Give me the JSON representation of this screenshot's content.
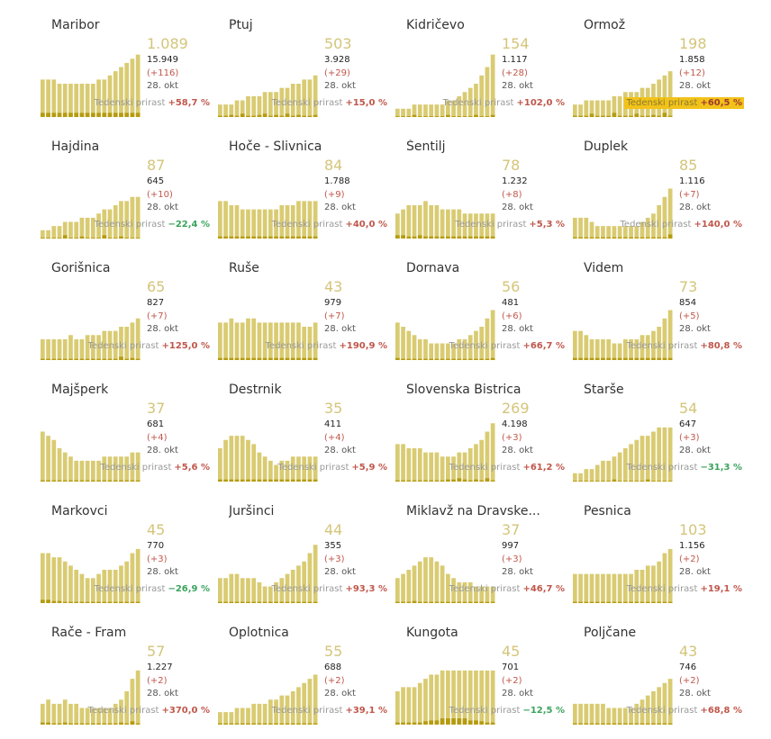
{
  "growth_label": "Tedenski prirast",
  "colors": {
    "bar_active": "#d9cb72",
    "bar_new": "#b59b10",
    "active_text": "#d4c57a",
    "positive": "#c0574b",
    "negative": "#3aa35c",
    "highlight": "#f2c21a"
  },
  "chart_data": [
    {
      "type": "bar",
      "title": "Maribor",
      "active": "1.089",
      "total": "15.949",
      "new": "(+116)",
      "date": "28. okt",
      "growth": "+58,7 %",
      "values": [
        9,
        9,
        9,
        8,
        8,
        8,
        8,
        8,
        8,
        8,
        9,
        9,
        10,
        11,
        12,
        13,
        14,
        15
      ],
      "new_values": [
        1,
        1,
        1,
        1,
        1,
        1,
        1,
        1,
        1,
        1,
        1,
        1,
        1,
        1,
        1,
        1,
        1,
        1
      ]
    },
    {
      "type": "bar",
      "title": "Ptuj",
      "active": "503",
      "total": "3.928",
      "new": "(+29)",
      "date": "28. okt",
      "growth": "+15,0 %",
      "values": [
        3,
        3,
        3,
        4,
        4,
        5,
        5,
        5,
        6,
        6,
        6,
        7,
        7,
        8,
        8,
        9,
        9,
        10
      ],
      "new_values": [
        0.3,
        0.3,
        0.5,
        0.3,
        0.8,
        0.3,
        0.3,
        0.5,
        0.8,
        0.3,
        0.5,
        0.3,
        0.8,
        0.3,
        0.5,
        0.3,
        0.3,
        0.5
      ]
    },
    {
      "type": "bar",
      "title": "Kidričevo",
      "active": "154",
      "total": "1.117",
      "new": "(+28)",
      "date": "28. okt",
      "growth": "+102,0 %",
      "values": [
        2,
        2,
        2,
        3,
        3,
        3,
        3,
        3,
        3,
        4,
        4,
        5,
        6,
        7,
        8,
        10,
        12,
        15
      ],
      "new_values": [
        0.2,
        0.2,
        0.2,
        0.5,
        0.2,
        0.2,
        0.2,
        0.2,
        0.2,
        0.5,
        0.2,
        0.2,
        0.2,
        0.2,
        0.5,
        0.2,
        0.2,
        0.5
      ]
    },
    {
      "type": "bar",
      "title": "Ormož",
      "active": "198",
      "total": "1.858",
      "new": "(+12)",
      "date": "28. okt",
      "growth": "+60,5 %",
      "highlight": true,
      "values": [
        3,
        3,
        4,
        4,
        4,
        4,
        4,
        5,
        5,
        6,
        6,
        6,
        7,
        7,
        8,
        9,
        10,
        11
      ],
      "new_values": [
        0.3,
        0.3,
        0.3,
        0.8,
        0.3,
        0.3,
        0.3,
        1,
        0.3,
        0.3,
        0.3,
        0.8,
        0.3,
        0.3,
        0.5,
        0.3,
        1,
        0.3
      ]
    },
    {
      "type": "bar",
      "title": "Hajdina",
      "active": "87",
      "total": "645",
      "new": "(+10)",
      "date": "28. okt",
      "growth": "−22,4 %",
      "values": [
        2,
        2,
        3,
        3,
        4,
        4,
        4,
        5,
        5,
        5,
        6,
        7,
        7,
        8,
        9,
        9,
        10,
        10
      ],
      "new_values": [
        0.2,
        0.2,
        0.2,
        0.2,
        0.8,
        0.2,
        0.2,
        0.5,
        0.2,
        0.2,
        0.2,
        0.8,
        0.2,
        0.2,
        0.5,
        0.2,
        0.2,
        0.2
      ]
    },
    {
      "type": "bar",
      "title": "Hoče - Slivnica",
      "active": "84",
      "total": "1.788",
      "new": "(+9)",
      "date": "28. okt",
      "growth": "+40,0 %",
      "values": [
        9,
        9,
        8,
        8,
        7,
        7,
        7,
        7,
        7,
        7,
        7,
        8,
        8,
        8,
        9,
        9,
        9,
        9
      ],
      "new_values": [
        0.5,
        0.5,
        0.5,
        0.5,
        0.5,
        0.5,
        0.5,
        0.5,
        0.5,
        0.5,
        0.5,
        0.5,
        0.5,
        0.5,
        0.5,
        0.5,
        0.5,
        0.5
      ]
    },
    {
      "type": "bar",
      "title": "Šentilj",
      "active": "78",
      "total": "1.232",
      "new": "(+8)",
      "date": "28. okt",
      "growth": "+5,3 %",
      "values": [
        6,
        7,
        8,
        8,
        8,
        9,
        8,
        8,
        7,
        7,
        7,
        7,
        6,
        6,
        6,
        6,
        6,
        6
      ],
      "new_values": [
        0.8,
        0.8,
        0.5,
        0.5,
        0.8,
        0.5,
        0.5,
        0.5,
        0.5,
        0.5,
        0.5,
        0.5,
        0.5,
        0.5,
        0.5,
        0.5,
        0.5,
        0.5
      ]
    },
    {
      "type": "bar",
      "title": "Duplek",
      "active": "85",
      "total": "1.116",
      "new": "(+7)",
      "date": "28. okt",
      "growth": "+140,0 %",
      "values": [
        5,
        5,
        5,
        4,
        3,
        3,
        3,
        3,
        3,
        3,
        3,
        3,
        4,
        5,
        6,
        8,
        10,
        12
      ],
      "new_values": [
        0.3,
        0.3,
        0.3,
        0.3,
        0.3,
        0.3,
        0.3,
        0.3,
        0.3,
        0.3,
        0.3,
        0.3,
        0.3,
        0.3,
        0.3,
        0.3,
        0.3,
        1
      ]
    },
    {
      "type": "bar",
      "title": "Gorišnica",
      "active": "65",
      "total": "827",
      "new": "(+7)",
      "date": "28. okt",
      "growth": "+125,0 %",
      "values": [
        5,
        5,
        5,
        5,
        5,
        6,
        5,
        5,
        6,
        6,
        6,
        7,
        7,
        7,
        8,
        8,
        9,
        10
      ],
      "new_values": [
        0.3,
        0.3,
        0.3,
        0.3,
        0.3,
        0.3,
        0.3,
        0.3,
        0.3,
        0.3,
        0.3,
        0.3,
        0.3,
        0.3,
        0.8,
        0.3,
        0.5,
        0.3
      ]
    },
    {
      "type": "bar",
      "title": "Ruše",
      "active": "43",
      "total": "979",
      "new": "(+7)",
      "date": "28. okt",
      "growth": "+190,9 %",
      "values": [
        9,
        9,
        10,
        9,
        9,
        10,
        10,
        9,
        9,
        9,
        9,
        9,
        9,
        9,
        9,
        8,
        8,
        9
      ],
      "new_values": [
        0.5,
        0.5,
        0.5,
        0.5,
        0.5,
        0.5,
        0.5,
        0.5,
        0.5,
        0.5,
        0.5,
        0.5,
        0.5,
        0.5,
        0.5,
        0.5,
        0.5,
        0.5
      ]
    },
    {
      "type": "bar",
      "title": "Dornava",
      "active": "56",
      "total": "481",
      "new": "(+6)",
      "date": "28. okt",
      "growth": "+66,7 %",
      "values": [
        9,
        8,
        7,
        6,
        5,
        5,
        4,
        4,
        4,
        4,
        4,
        5,
        5,
        6,
        7,
        8,
        10,
        12
      ],
      "new_values": [
        0.5,
        0.3,
        0.3,
        0.3,
        0.3,
        0.3,
        0.3,
        0.3,
        0.3,
        0.3,
        0.3,
        0.3,
        0.3,
        0.3,
        0.3,
        0.3,
        0.3,
        0.5
      ]
    },
    {
      "type": "bar",
      "title": "Videm",
      "active": "73",
      "total": "854",
      "new": "(+5)",
      "date": "28. okt",
      "growth": "+80,8 %",
      "values": [
        7,
        7,
        6,
        5,
        5,
        5,
        5,
        4,
        4,
        5,
        5,
        5,
        6,
        6,
        7,
        8,
        10,
        12
      ],
      "new_values": [
        0.5,
        0.5,
        0.5,
        0.5,
        0.5,
        0.5,
        0.5,
        0.5,
        0.5,
        0.5,
        0.5,
        0.5,
        0.5,
        0.5,
        0.5,
        0.5,
        0.5,
        0.5
      ]
    },
    {
      "type": "bar",
      "title": "Majšperk",
      "active": "37",
      "total": "681",
      "new": "(+4)",
      "date": "28. okt",
      "growth": "+5,6 %",
      "values": [
        12,
        11,
        10,
        8,
        7,
        6,
        5,
        5,
        5,
        5,
        5,
        6,
        6,
        6,
        6,
        6,
        7,
        7
      ],
      "new_values": [
        0.3,
        0.3,
        0.3,
        0.3,
        0.3,
        0.3,
        0.3,
        0.3,
        0.3,
        0.3,
        0.3,
        0.3,
        0.3,
        0.3,
        0.3,
        0.3,
        0.3,
        0.3
      ]
    },
    {
      "type": "bar",
      "title": "Destrnik",
      "active": "35",
      "total": "411",
      "new": "(+4)",
      "date": "28. okt",
      "growth": "+5,9 %",
      "values": [
        8,
        10,
        11,
        11,
        11,
        10,
        9,
        7,
        6,
        5,
        4,
        5,
        5,
        6,
        6,
        6,
        6,
        6
      ],
      "new_values": [
        0.5,
        0.5,
        0.5,
        0.5,
        0.5,
        0.5,
        0.5,
        0.5,
        0.5,
        0.5,
        0.5,
        0.5,
        0.5,
        0.5,
        0.5,
        0.5,
        0.5,
        0.5
      ]
    },
    {
      "type": "bar",
      "title": "Slovenska Bistrica",
      "active": "269",
      "total": "4.198",
      "new": "(+3)",
      "date": "28. okt",
      "growth": "+61,2 %",
      "values": [
        9,
        9,
        8,
        8,
        8,
        7,
        7,
        7,
        6,
        6,
        6,
        7,
        7,
        8,
        9,
        10,
        12,
        14
      ],
      "new_values": [
        0.3,
        0.3,
        0.3,
        0.3,
        0.3,
        0.3,
        0.3,
        0.3,
        0.3,
        0.5,
        0.5,
        0.8,
        0.5,
        0.3,
        0.5,
        0.3,
        0.8,
        0.3
      ]
    },
    {
      "type": "bar",
      "title": "Starše",
      "active": "54",
      "total": "647",
      "new": "(+3)",
      "date": "28. okt",
      "growth": "−31,3 %",
      "values": [
        2,
        2,
        3,
        3,
        4,
        5,
        5,
        6,
        7,
        8,
        9,
        10,
        11,
        11,
        12,
        13,
        13,
        13
      ],
      "new_values": [
        0.2,
        0.2,
        0.2,
        0.2,
        0.2,
        0.2,
        0.2,
        0.5,
        0.2,
        0.2,
        0.2,
        0.2,
        0.2,
        0.5,
        0.2,
        0.2,
        0.2,
        0.2
      ]
    },
    {
      "type": "bar",
      "title": "Markovci",
      "active": "45",
      "total": "770",
      "new": "(+3)",
      "date": "28. okt",
      "growth": "−26,9 %",
      "values": [
        12,
        12,
        11,
        11,
        10,
        9,
        8,
        7,
        6,
        6,
        7,
        8,
        8,
        8,
        9,
        10,
        12,
        13
      ],
      "new_values": [
        0.8,
        0.8,
        0.5,
        0.5,
        0.3,
        0.3,
        0.3,
        0.3,
        0.3,
        0.3,
        0.3,
        0.3,
        0.3,
        0.3,
        0.3,
        0.3,
        0.3,
        0.3
      ]
    },
    {
      "type": "bar",
      "title": "Juršinci",
      "active": "44",
      "total": "355",
      "new": "(+3)",
      "date": "28. okt",
      "growth": "+93,3 %",
      "values": [
        6,
        6,
        7,
        7,
        6,
        6,
        6,
        5,
        4,
        4,
        5,
        6,
        7,
        8,
        9,
        10,
        12,
        14
      ],
      "new_values": [
        0.3,
        0.3,
        0.3,
        0.3,
        0.3,
        0.3,
        0.3,
        0.3,
        0.3,
        0.3,
        0.3,
        0.3,
        0.3,
        0.3,
        0.3,
        0.3,
        0.3,
        0.3
      ]
    },
    {
      "type": "bar",
      "title": "Miklavž na Dravske...",
      "active": "37",
      "total": "997",
      "new": "(+3)",
      "date": "28. okt",
      "growth": "+46,7 %",
      "values": [
        6,
        7,
        8,
        9,
        10,
        11,
        11,
        10,
        9,
        7,
        6,
        5,
        5,
        5,
        4,
        4,
        4,
        4
      ],
      "new_values": [
        0.3,
        0.3,
        0.3,
        0.5,
        0.3,
        0.3,
        0.3,
        0.3,
        0.3,
        0.3,
        0.3,
        0.3,
        0.3,
        0.3,
        0.3,
        0.3,
        0.3,
        0.3
      ]
    },
    {
      "type": "bar",
      "title": "Pesnica",
      "active": "103",
      "total": "1.156",
      "new": "(+2)",
      "date": "28. okt",
      "growth": "+19,1 %",
      "values": [
        7,
        7,
        7,
        7,
        7,
        7,
        7,
        7,
        7,
        7,
        7,
        8,
        8,
        9,
        9,
        10,
        12,
        13
      ],
      "new_values": [
        0.3,
        0.3,
        0.3,
        0.3,
        0.3,
        0.3,
        0.3,
        0.3,
        0.3,
        0.3,
        0.3,
        0.3,
        0.3,
        0.3,
        0.3,
        0.3,
        0.3,
        0.3
      ]
    },
    {
      "type": "bar",
      "title": "Rače - Fram",
      "active": "57",
      "total": "1.227",
      "new": "(+2)",
      "date": "28. okt",
      "growth": "+370,0 %",
      "values": [
        5,
        6,
        5,
        5,
        6,
        5,
        5,
        4,
        4,
        4,
        4,
        4,
        4,
        5,
        6,
        8,
        11,
        13
      ],
      "new_values": [
        0.5,
        0.5,
        0.3,
        0.3,
        0.5,
        0.3,
        0.3,
        0.3,
        0.3,
        0.3,
        0.3,
        0.3,
        0.3,
        0.3,
        0.5,
        0.3,
        0.8,
        0.3
      ]
    },
    {
      "type": "bar",
      "title": "Oplotnica",
      "active": "55",
      "total": "688",
      "new": "(+2)",
      "date": "28. okt",
      "growth": "+39,1 %",
      "values": [
        3,
        3,
        3,
        4,
        4,
        4,
        5,
        5,
        5,
        6,
        6,
        7,
        7,
        8,
        9,
        10,
        11,
        12
      ],
      "new_values": [
        0.3,
        0.3,
        0.3,
        0.3,
        0.3,
        0.3,
        0.3,
        0.3,
        0.3,
        0.3,
        0.3,
        0.3,
        0.3,
        0.3,
        0.3,
        0.3,
        0.3,
        0.3
      ]
    },
    {
      "type": "bar",
      "title": "Kungota",
      "active": "45",
      "total": "701",
      "new": "(+2)",
      "date": "28. okt",
      "growth": "−12,5 %",
      "values": [
        8,
        9,
        9,
        9,
        10,
        11,
        12,
        12,
        13,
        13,
        13,
        13,
        13,
        13,
        13,
        13,
        13,
        13
      ],
      "new_values": [
        0.5,
        0.5,
        0.5,
        0.5,
        0.5,
        0.8,
        1,
        1,
        1.5,
        1.5,
        1.5,
        1.5,
        1.5,
        1,
        1,
        0.8,
        0.5,
        0.5
      ]
    },
    {
      "type": "bar",
      "title": "Poljčane",
      "active": "43",
      "total": "746",
      "new": "(+2)",
      "date": "28. okt",
      "growth": "+68,8 %",
      "values": [
        5,
        5,
        5,
        5,
        5,
        5,
        4,
        4,
        4,
        4,
        4,
        5,
        6,
        7,
        8,
        9,
        10,
        11
      ],
      "new_values": [
        0.3,
        0.3,
        0.3,
        0.3,
        0.3,
        0.3,
        0.3,
        0.3,
        0.3,
        0.3,
        0.3,
        0.3,
        0.3,
        0.3,
        0.3,
        0.3,
        0.3,
        0.3
      ]
    }
  ]
}
